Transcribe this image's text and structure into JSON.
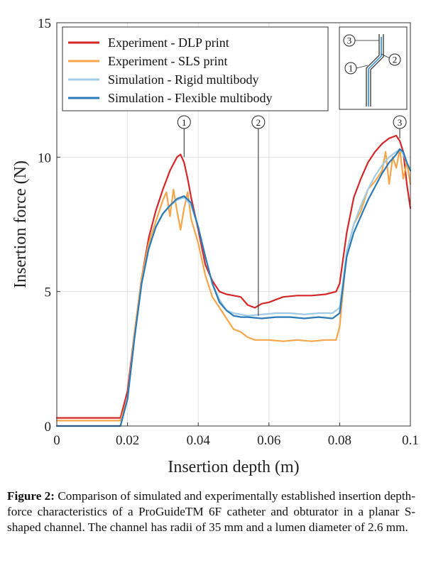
{
  "chart_data": {
    "type": "line",
    "xlabel": "Insertion depth (m)",
    "ylabel": "Insertion force (N)",
    "xlim": [
      0,
      0.1
    ],
    "ylim": [
      0,
      15
    ],
    "xticks": [
      "0",
      "0.02",
      "0.04",
      "0.06",
      "0.08",
      "0.1"
    ],
    "yticks": [
      "0",
      "5",
      "10",
      "15"
    ],
    "grid": true,
    "legend_position": "top-left",
    "series": [
      {
        "name": "Experiment - DLP print",
        "color": "#d62728",
        "x": [
          0.0,
          0.018,
          0.02,
          0.022,
          0.024,
          0.026,
          0.028,
          0.03,
          0.032,
          0.034,
          0.035,
          0.036,
          0.037,
          0.038,
          0.04,
          0.042,
          0.044,
          0.046,
          0.048,
          0.05,
          0.052,
          0.054,
          0.056,
          0.058,
          0.06,
          0.064,
          0.068,
          0.072,
          0.076,
          0.079,
          0.08,
          0.082,
          0.084,
          0.086,
          0.088,
          0.09,
          0.092,
          0.094,
          0.096,
          0.097,
          0.098,
          0.099,
          0.1
        ],
        "y": [
          0.3,
          0.3,
          1.3,
          3.5,
          5.5,
          7.0,
          8.0,
          8.8,
          9.5,
          10.0,
          10.1,
          9.8,
          9.2,
          8.5,
          7.3,
          6.0,
          5.4,
          5.0,
          4.9,
          4.85,
          4.8,
          4.5,
          4.4,
          4.55,
          4.6,
          4.8,
          4.85,
          4.85,
          4.9,
          5.0,
          5.3,
          7.2,
          8.5,
          9.2,
          9.8,
          10.2,
          10.5,
          10.7,
          10.8,
          10.6,
          10.2,
          9.0,
          8.1
        ]
      },
      {
        "name": "Experiment - SLS print",
        "color": "#f6a64a",
        "x": [
          0.0,
          0.018,
          0.02,
          0.022,
          0.024,
          0.026,
          0.028,
          0.029,
          0.03,
          0.031,
          0.032,
          0.033,
          0.034,
          0.035,
          0.036,
          0.037,
          0.038,
          0.04,
          0.042,
          0.044,
          0.046,
          0.048,
          0.05,
          0.052,
          0.054,
          0.056,
          0.06,
          0.064,
          0.068,
          0.072,
          0.076,
          0.079,
          0.08,
          0.082,
          0.084,
          0.086,
          0.088,
          0.09,
          0.092,
          0.093,
          0.094,
          0.095,
          0.096,
          0.097,
          0.098,
          0.099,
          0.1
        ],
        "y": [
          0.2,
          0.2,
          1.0,
          3.5,
          5.5,
          6.8,
          7.6,
          8.0,
          8.4,
          8.7,
          7.8,
          8.8,
          8.0,
          7.3,
          8.1,
          8.7,
          7.7,
          6.8,
          5.6,
          4.8,
          4.4,
          4.0,
          3.6,
          3.5,
          3.3,
          3.2,
          3.2,
          3.15,
          3.2,
          3.15,
          3.2,
          3.2,
          3.7,
          6.5,
          7.5,
          8.0,
          8.8,
          9.1,
          9.5,
          10.2,
          9.0,
          10.0,
          9.6,
          10.3,
          9.2,
          9.8,
          9.0
        ]
      },
      {
        "name": "Simulation  - Rigid multibody",
        "color": "#9fcbe3",
        "x": [
          0.0,
          0.018,
          0.02,
          0.022,
          0.024,
          0.026,
          0.028,
          0.03,
          0.032,
          0.034,
          0.036,
          0.038,
          0.04,
          0.042,
          0.044,
          0.046,
          0.048,
          0.05,
          0.052,
          0.054,
          0.058,
          0.062,
          0.066,
          0.07,
          0.074,
          0.078,
          0.08,
          0.082,
          0.084,
          0.086,
          0.088,
          0.09,
          0.092,
          0.094,
          0.096,
          0.097,
          0.098,
          0.099,
          0.1
        ],
        "y": [
          0.0,
          0.0,
          1.0,
          3.3,
          5.3,
          6.6,
          7.4,
          7.9,
          8.2,
          8.4,
          8.5,
          8.2,
          7.4,
          6.3,
          5.3,
          4.7,
          4.3,
          4.2,
          4.15,
          4.1,
          4.15,
          4.2,
          4.2,
          4.15,
          4.2,
          4.2,
          4.4,
          6.5,
          7.5,
          8.2,
          8.8,
          9.3,
          9.7,
          10.0,
          10.2,
          10.3,
          10.1,
          9.8,
          9.5
        ]
      },
      {
        "name": "Simulation  - Flexible multibody",
        "color": "#2a7ab8",
        "x": [
          0.0,
          0.018,
          0.02,
          0.022,
          0.024,
          0.026,
          0.028,
          0.03,
          0.032,
          0.034,
          0.036,
          0.038,
          0.04,
          0.042,
          0.044,
          0.046,
          0.048,
          0.05,
          0.052,
          0.054,
          0.058,
          0.062,
          0.066,
          0.07,
          0.074,
          0.078,
          0.08,
          0.082,
          0.084,
          0.086,
          0.088,
          0.09,
          0.092,
          0.094,
          0.096,
          0.097,
          0.098,
          0.099,
          0.1
        ],
        "y": [
          0.0,
          0.0,
          1.0,
          3.3,
          5.3,
          6.6,
          7.4,
          7.9,
          8.2,
          8.45,
          8.55,
          8.3,
          7.4,
          6.3,
          5.3,
          4.6,
          4.3,
          4.1,
          4.05,
          4.05,
          4.0,
          4.05,
          4.05,
          4.0,
          4.05,
          4.0,
          4.2,
          6.3,
          7.2,
          7.8,
          8.4,
          8.9,
          9.4,
          9.8,
          10.1,
          10.3,
          10.2,
          9.8,
          9.5
        ]
      }
    ],
    "annotations": [
      {
        "label": "1",
        "x": 0.036
      },
      {
        "label": "2",
        "x": 0.057
      },
      {
        "label": "3",
        "x": 0.097
      }
    ],
    "inset_labels": [
      "3",
      "2",
      "1"
    ]
  },
  "caption": {
    "label": "Figure 2:",
    "text": " Comparison of simulated and experimentally established insertion depth-force characteristics of a ProGuideTM 6F catheter and obturator in a planar S-shaped channel. The channel has radii of 35 mm and a lumen diameter of 2.6 mm."
  }
}
